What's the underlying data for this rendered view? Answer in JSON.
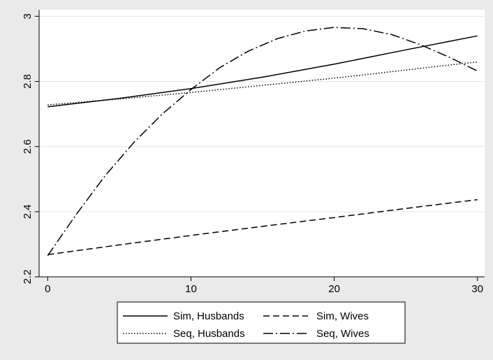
{
  "chart_data": {
    "type": "line",
    "title": "",
    "xlabel": "",
    "ylabel": "",
    "xlim": [
      -0.6,
      30.5
    ],
    "ylim": [
      2.2,
      3.02
    ],
    "xticks": [
      0,
      10,
      20,
      30
    ],
    "xtick_labels": [
      "0",
      "10",
      "20",
      "30"
    ],
    "yticks": [
      2.2,
      2.4,
      2.6,
      2.8,
      3.0
    ],
    "ytick_labels": [
      "2.2",
      "2.4",
      "2.6",
      "2.8",
      "3"
    ],
    "grid": true,
    "legend_position": "bottom",
    "series": [
      {
        "name": "Sim, Husbands",
        "style": "solid",
        "x": [
          0,
          5,
          10,
          15,
          20,
          25,
          30
        ],
        "y": [
          2.722,
          2.748,
          2.778,
          2.813,
          2.853,
          2.897,
          2.94
        ]
      },
      {
        "name": "Sim, Wives",
        "style": "dash",
        "x": [
          0,
          5,
          10,
          15,
          20,
          25,
          30
        ],
        "y": [
          2.268,
          2.298,
          2.327,
          2.355,
          2.382,
          2.41,
          2.437
        ]
      },
      {
        "name": "Seq, Husbands",
        "style": "dot",
        "x": [
          0,
          5,
          10,
          15,
          20,
          25,
          30
        ],
        "y": [
          2.728,
          2.746,
          2.766,
          2.788,
          2.81,
          2.835,
          2.86
        ]
      },
      {
        "name": "Seq, Wives",
        "style": "dashdot",
        "x": [
          0,
          2,
          4,
          6,
          8,
          10,
          12,
          14,
          16,
          18,
          20,
          22,
          24,
          26,
          28,
          30
        ],
        "y": [
          2.265,
          2.392,
          2.51,
          2.612,
          2.7,
          2.775,
          2.842,
          2.893,
          2.931,
          2.955,
          2.966,
          2.962,
          2.944,
          2.913,
          2.875,
          2.832
        ]
      }
    ]
  },
  "colors": {
    "background": "#eaeaea",
    "plot_area": "#ffffff",
    "grid": "#e6e6e6",
    "line": "#000000"
  }
}
